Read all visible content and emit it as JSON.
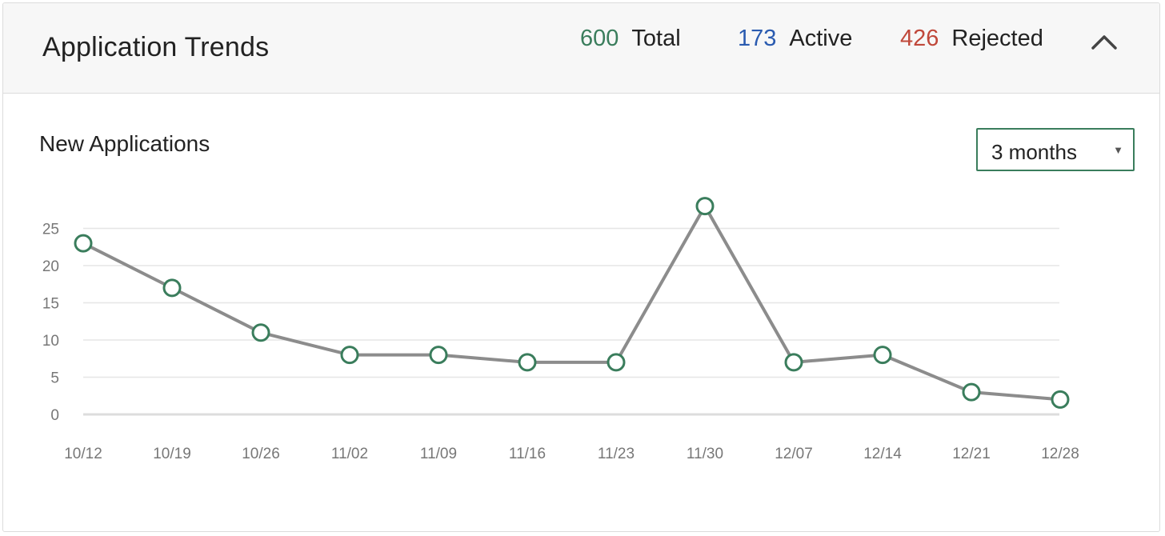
{
  "header": {
    "title": "Application Trends",
    "stats": {
      "total": {
        "value": "600",
        "label": "Total",
        "color": "#3a7d5c"
      },
      "active": {
        "value": "173",
        "label": "Active",
        "color": "#2a5bb0"
      },
      "rejected": {
        "value": "426",
        "label": "Rejected",
        "color": "#c0483a"
      }
    },
    "collapse_icon": "chevron-up-icon"
  },
  "section": {
    "title": "New Applications",
    "range_select": {
      "value": "3 months",
      "icon": "caret-down-icon"
    }
  },
  "colors": {
    "line": "#8c8c8c",
    "marker": "#3a7d5c",
    "grid": "#e6e6e6",
    "axis": "#dddddd"
  },
  "chart_data": {
    "type": "line",
    "title": "New Applications",
    "xlabel": "",
    "ylabel": "",
    "categories": [
      "10/12",
      "10/19",
      "10/26",
      "11/02",
      "11/09",
      "11/16",
      "11/23",
      "11/30",
      "12/07",
      "12/14",
      "12/21",
      "12/28"
    ],
    "values": [
      23,
      17,
      11,
      8,
      8,
      7,
      7,
      28,
      7,
      8,
      3,
      2
    ],
    "yticks": [
      0,
      5,
      10,
      15,
      20,
      25
    ],
    "ylim": [
      0,
      25
    ],
    "grid": true,
    "legend": false
  }
}
